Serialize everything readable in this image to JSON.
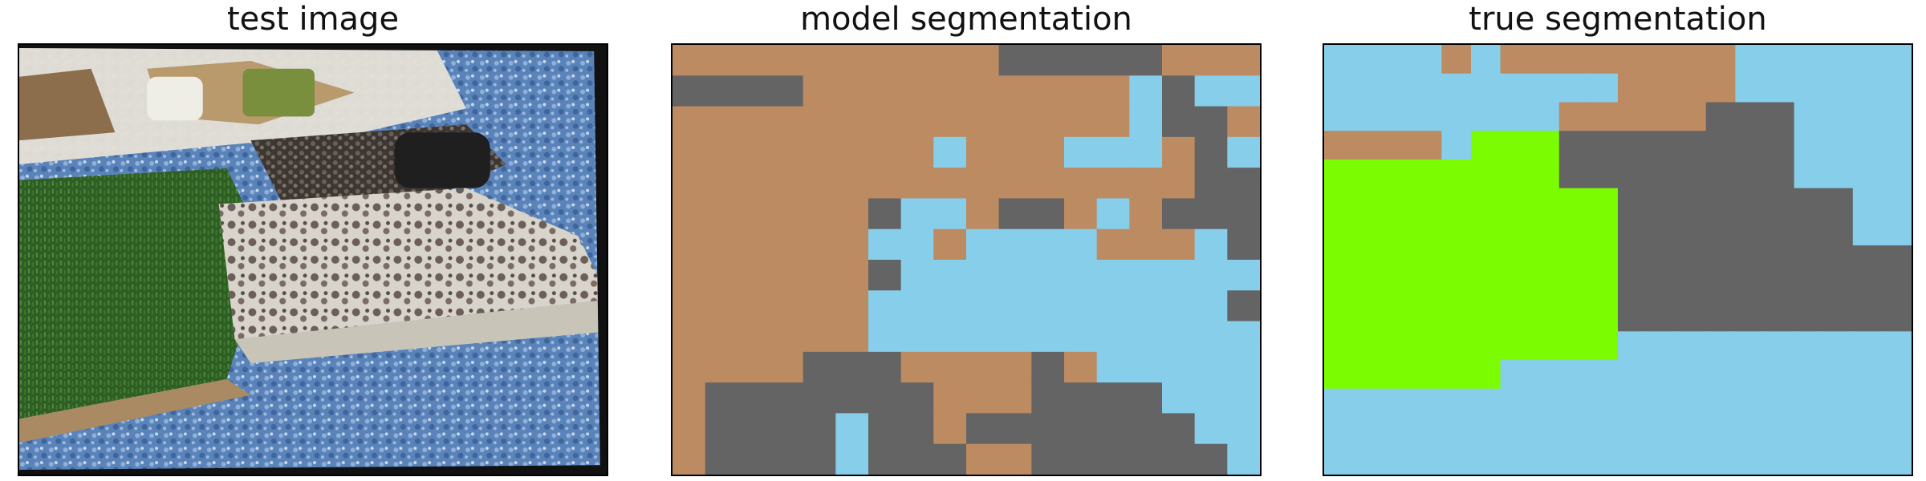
{
  "panels": [
    {
      "title": "test image"
    },
    {
      "title": "model segmentation"
    },
    {
      "title": "true segmentation"
    }
  ],
  "colors": {
    "brown": "#bc8b62",
    "gray": "#646464",
    "blue": "#87ceeb",
    "green": "#7cfc00",
    "grass": "#3a6b2b",
    "floor": "#4f78b0",
    "stone": "#d9d6cf",
    "dark": "#2b2b2b",
    "board": "#a98a62"
  },
  "model_grid": [
    "BBBBBBBBBBGGGGGBBB",
    "GGGGBBBBBBBBBBLGLL",
    "BBBBBBBBBBBBBBLGGB",
    "BBBBBBBBLBBBLLLBGL",
    "BBBBBBBBBBBBBBBBGG",
    "BBBBBBGLLBGGBLBGGG",
    "BBBBBBLLBLLLLBBBLG",
    "BBBBBBGLLLLLLLLLLL",
    "BBBBBBLLLLLLLLLLLG",
    "BBBBBBLLLLLLLLLLLL",
    "BBBBGGGBBBBGBLLLLL",
    "BGGGGGGGBBBGGGGLLL",
    "BGGGGLGGBGGGGGGGLL",
    "BGGGGLGGGBBGGGGGGL"
  ],
  "true_grid": [
    "LLLLBLBBBBBBBBLLLLLL",
    "LLLLLLLLLLBBBBLLLLLL",
    "LLLLLLLLBBBBBGGGLLLL",
    "BBBBLNNNGGGGGGGGLLLL",
    "NNNNNNNNGGGGGGGGLLLL",
    "NNNNNNNNNNGGGGGGGGLL",
    "NNNNNNNNNNGGGGGGGGLL",
    "NNNNNNNNNNGGGGGGGGGG",
    "NNNNNNNNNNGGGGGGGGGG",
    "NNNNNNNNNNGGGGGGGGGG",
    "NNNNNNNNNNLLLLLLLLLL",
    "NNNNNNLLLLLLLLLLLLLL",
    "LLLLLLLLLLLLLLLLLLLL",
    "LLLLLLLLLLLLLLLLLLLL",
    "LLLLLLLLLLLLLLLLLLLL"
  ]
}
